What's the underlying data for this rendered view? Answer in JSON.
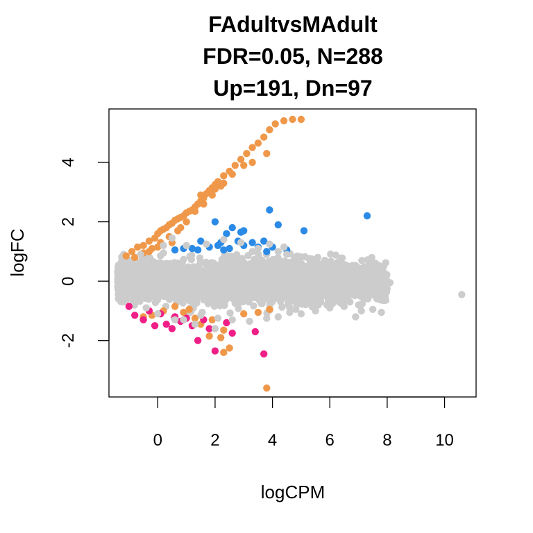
{
  "chart_data": {
    "type": "scatter",
    "title_lines": [
      "FAdultvsMAdult",
      "FDR=0.05, N=288",
      "Up=191, Dn=97"
    ],
    "xlabel": "logCPM",
    "ylabel": "logFC",
    "xlim": [
      -1.7,
      11.1
    ],
    "ylim": [
      -3.9,
      5.8
    ],
    "xticks": [
      0,
      2,
      4,
      6,
      8,
      10
    ],
    "yticks": [
      -2,
      0,
      2,
      4
    ],
    "grid": false,
    "colors": {
      "not_significant": "#cccccc",
      "significant_high": "#f0984a",
      "up": "#2a8ae6",
      "down": "#f01e87"
    },
    "series": [
      {
        "key": "significant_high",
        "points": [
          [
            -1.1,
            0.85
          ],
          [
            -0.9,
            1.0
          ],
          [
            -0.7,
            1.15
          ],
          [
            -0.5,
            1.2
          ],
          [
            -0.3,
            1.35
          ],
          [
            -0.1,
            1.45
          ],
          [
            0.0,
            1.6
          ],
          [
            0.1,
            1.7
          ],
          [
            0.2,
            1.75
          ],
          [
            0.3,
            1.8
          ],
          [
            0.4,
            1.9
          ],
          [
            0.5,
            1.95
          ],
          [
            0.6,
            2.05
          ],
          [
            0.7,
            2.1
          ],
          [
            0.8,
            2.15
          ],
          [
            0.9,
            2.2
          ],
          [
            1.0,
            2.3
          ],
          [
            1.1,
            2.35
          ],
          [
            1.2,
            2.4
          ],
          [
            1.3,
            2.5
          ],
          [
            1.4,
            2.6
          ],
          [
            1.5,
            2.7
          ],
          [
            1.6,
            2.8
          ],
          [
            1.7,
            2.95
          ],
          [
            1.8,
            3.05
          ],
          [
            1.9,
            3.15
          ],
          [
            2.0,
            3.25
          ],
          [
            2.1,
            3.35
          ],
          [
            2.3,
            3.55
          ],
          [
            2.5,
            3.7
          ],
          [
            2.7,
            3.9
          ],
          [
            2.9,
            4.1
          ],
          [
            3.1,
            4.3
          ],
          [
            3.3,
            4.5
          ],
          [
            3.5,
            4.65
          ],
          [
            3.7,
            4.85
          ],
          [
            3.9,
            5.1
          ],
          [
            4.1,
            5.3
          ],
          [
            4.4,
            5.4
          ],
          [
            4.7,
            5.45
          ],
          [
            5.0,
            5.45
          ],
          [
            3.8,
            4.3
          ],
          [
            3.3,
            4.0
          ],
          [
            3.0,
            3.9
          ],
          [
            2.6,
            3.6
          ],
          [
            2.2,
            3.2
          ],
          [
            1.9,
            2.9
          ],
          [
            1.6,
            2.6
          ],
          [
            1.3,
            2.35
          ],
          [
            1.0,
            2.0
          ],
          [
            0.7,
            1.7
          ],
          [
            0.4,
            1.5
          ],
          [
            0.1,
            1.3
          ],
          [
            -0.2,
            1.1
          ],
          [
            -0.5,
            0.95
          ],
          [
            -0.8,
            0.8
          ],
          [
            2.0,
            3.1
          ],
          [
            2.3,
            3.3
          ],
          [
            1.5,
            2.9
          ],
          [
            0.8,
            1.8
          ],
          [
            0.5,
            1.3
          ],
          [
            0.0,
            1.15
          ],
          [
            -0.3,
            1.0
          ],
          [
            0.2,
            -1.0
          ],
          [
            -0.2,
            -1.15
          ],
          [
            0.9,
            -1.05
          ],
          [
            1.3,
            -1.25
          ],
          [
            1.5,
            -1.45
          ],
          [
            1.9,
            -1.3
          ],
          [
            2.3,
            -1.65
          ],
          [
            2.2,
            -1.9
          ],
          [
            1.8,
            -1.85
          ],
          [
            2.5,
            -2.25
          ],
          [
            2.3,
            -2.4
          ],
          [
            3.0,
            -1.1
          ],
          [
            3.5,
            -1.05
          ],
          [
            3.9,
            -0.95
          ],
          [
            1.1,
            -0.95
          ],
          [
            0.6,
            -0.85
          ],
          [
            3.8,
            -3.6
          ],
          [
            -0.5,
            -1.2
          ]
        ]
      },
      {
        "key": "up",
        "points": [
          [
            3.9,
            2.4
          ],
          [
            4.2,
            1.9
          ],
          [
            5.1,
            1.7
          ],
          [
            7.3,
            2.2
          ],
          [
            2.0,
            2.0
          ],
          [
            2.6,
            1.8
          ],
          [
            2.9,
            1.65
          ],
          [
            3.0,
            1.7
          ],
          [
            2.4,
            1.6
          ],
          [
            1.5,
            1.35
          ],
          [
            2.2,
            1.3
          ],
          [
            2.8,
            1.35
          ],
          [
            3.7,
            1.35
          ],
          [
            2.5,
            1.1
          ],
          [
            1.2,
            1.1
          ],
          [
            1.8,
            1.15
          ],
          [
            0.6,
            1.05
          ],
          [
            3.0,
            1.2
          ],
          [
            3.5,
            1.15
          ],
          [
            4.0,
            1.15
          ],
          [
            4.5,
            1.05
          ],
          [
            3.3,
            1.3
          ],
          [
            2.1,
            1.2
          ],
          [
            0.9,
            1.1
          ],
          [
            3.8,
            1.0
          ],
          [
            1.4,
            1.05
          ],
          [
            2.3,
            1.05
          ]
        ]
      },
      {
        "key": "down",
        "points": [
          [
            -1.0,
            -0.85
          ],
          [
            -0.8,
            -1.15
          ],
          [
            -0.5,
            -1.3
          ],
          [
            -0.1,
            -1.5
          ],
          [
            0.3,
            -1.45
          ],
          [
            0.5,
            -1.6
          ],
          [
            1.2,
            -1.5
          ],
          [
            1.8,
            -1.6
          ],
          [
            1.4,
            -2.0
          ],
          [
            2.0,
            -2.35
          ],
          [
            2.6,
            -1.75
          ],
          [
            3.4,
            -1.7
          ],
          [
            3.7,
            -2.45
          ],
          [
            0.6,
            -1.2
          ],
          [
            1.0,
            -1.25
          ],
          [
            2.4,
            -1.4
          ],
          [
            1.6,
            -1.3
          ],
          [
            -0.3,
            -1.0
          ],
          [
            0.1,
            -1.1
          ],
          [
            0.8,
            -1.35
          ]
        ]
      },
      {
        "key": "not_significant",
        "points": [
          [
            10.6,
            -0.45
          ],
          [
            -1.3,
            -0.1
          ],
          [
            -1.2,
            0.1
          ],
          [
            -1.1,
            -0.2
          ],
          [
            -1.0,
            0.15
          ],
          [
            -1.2,
            -0.7
          ],
          [
            -0.9,
            -0.5
          ],
          [
            -0.6,
            0.9
          ],
          [
            -0.4,
            -0.9
          ],
          [
            0.2,
            1.2
          ],
          [
            0.5,
            1.45
          ],
          [
            0.6,
            -1.3
          ],
          [
            0.9,
            -1.3
          ],
          [
            1.3,
            -1.45
          ],
          [
            2.0,
            -1.6
          ],
          [
            2.1,
            -1.25
          ],
          [
            3.2,
            -1.35
          ],
          [
            3.8,
            -1.25
          ],
          [
            4.2,
            -1.2
          ],
          [
            4.6,
            -1.05
          ],
          [
            5.0,
            -1.1
          ],
          [
            5.5,
            -1.0
          ],
          [
            6.0,
            -0.9
          ],
          [
            6.5,
            -0.85
          ],
          [
            7.0,
            -0.8
          ],
          [
            7.1,
            -1.0
          ],
          [
            7.5,
            -0.95
          ],
          [
            7.8,
            -1.05
          ],
          [
            6.9,
            -1.2
          ],
          [
            8.1,
            -0.05
          ],
          [
            7.8,
            0.0
          ],
          [
            7.4,
            0.3
          ],
          [
            7.0,
            0.45
          ],
          [
            6.5,
            0.55
          ],
          [
            6.0,
            0.6
          ],
          [
            5.5,
            0.7
          ],
          [
            5.0,
            0.8
          ],
          [
            4.5,
            0.9
          ],
          [
            4.2,
            1.0
          ],
          [
            3.5,
            1.1
          ],
          [
            3.3,
            1.0
          ],
          [
            2.9,
            1.3
          ],
          [
            2.3,
            1.4
          ],
          [
            1.7,
            1.25
          ],
          [
            1.0,
            1.2
          ],
          [
            0.2,
            0.95
          ],
          [
            7.7,
            -0.2
          ],
          [
            7.9,
            0.2
          ],
          [
            7.2,
            -0.6
          ],
          [
            6.7,
            -0.7
          ],
          [
            6.1,
            -0.75
          ],
          [
            3.9,
            1.25
          ],
          [
            4.4,
            1.15
          ],
          [
            2.6,
            -1.3
          ],
          [
            1.5,
            -1.15
          ],
          [
            0.0,
            -1.1
          ]
        ]
      }
    ],
    "background_cloud": {
      "x_range": [
        -1.4,
        8.0
      ],
      "count": 3500
    }
  }
}
